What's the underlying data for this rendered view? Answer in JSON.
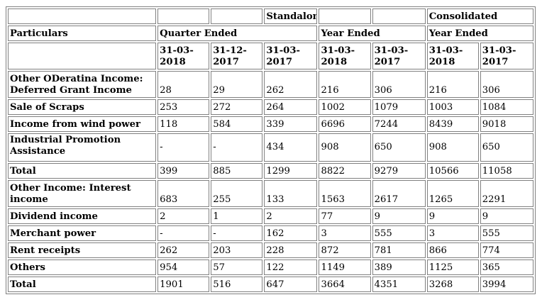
{
  "header": {
    "standalone": "Standalone",
    "consolidated": "Consolidated",
    "particulars": "Particulars",
    "quarter_ended": "Quarter Ended",
    "year_ended_standalone": "Year Ended",
    "year_ended_consolidated": "Year Ended",
    "dates": [
      "31-03-2018",
      "31-12-2017",
      "31-03-2017",
      "31-03-2018",
      "31-03-2017",
      "31-03-2018",
      "31-03-2017"
    ]
  },
  "rows": [
    {
      "label": "Other ODeratina Income: Deferred Grant Income",
      "values": [
        "28",
        "29",
        "262",
        "216",
        "306",
        "216",
        "306"
      ]
    },
    {
      "label": "Sale of Scraps",
      "values": [
        "253",
        "272",
        "264",
        "1002",
        "1079",
        "1003",
        "1084"
      ]
    },
    {
      "label": "Income from wind power",
      "values": [
        "118",
        "584",
        "339",
        "6696",
        "7244",
        "8439",
        "9018"
      ]
    },
    {
      "label": "Industrial Promotion Assistance",
      "values": [
        "-",
        "-",
        "434",
        "908",
        "650",
        "908",
        "650"
      ]
    },
    {
      "label": "Total",
      "values": [
        "399",
        "885",
        "1299",
        "8822",
        "9279",
        "10566",
        "11058"
      ]
    },
    {
      "label": "Other Income: Interest income",
      "values": [
        "683",
        "255",
        "133",
        "1563",
        "2617",
        "1265",
        "2291"
      ]
    },
    {
      "label": "Dividend income",
      "values": [
        "2",
        "1",
        "2",
        "77",
        "9",
        "9",
        "9"
      ]
    },
    {
      "label": "Merchant power",
      "values": [
        "-",
        "-",
        "162",
        "3",
        "555",
        "3",
        "555"
      ]
    },
    {
      "label": "Rent receipts",
      "values": [
        "262",
        "203",
        "228",
        "872",
        "781",
        "866",
        "774"
      ]
    },
    {
      "label": "Others",
      "values": [
        "954",
        "57",
        "122",
        "1149",
        "389",
        "1125",
        "365"
      ]
    },
    {
      "label": "Total",
      "values": [
        "1901",
        "516",
        "647",
        "3664",
        "4351",
        "3268",
        "3994"
      ]
    }
  ]
}
